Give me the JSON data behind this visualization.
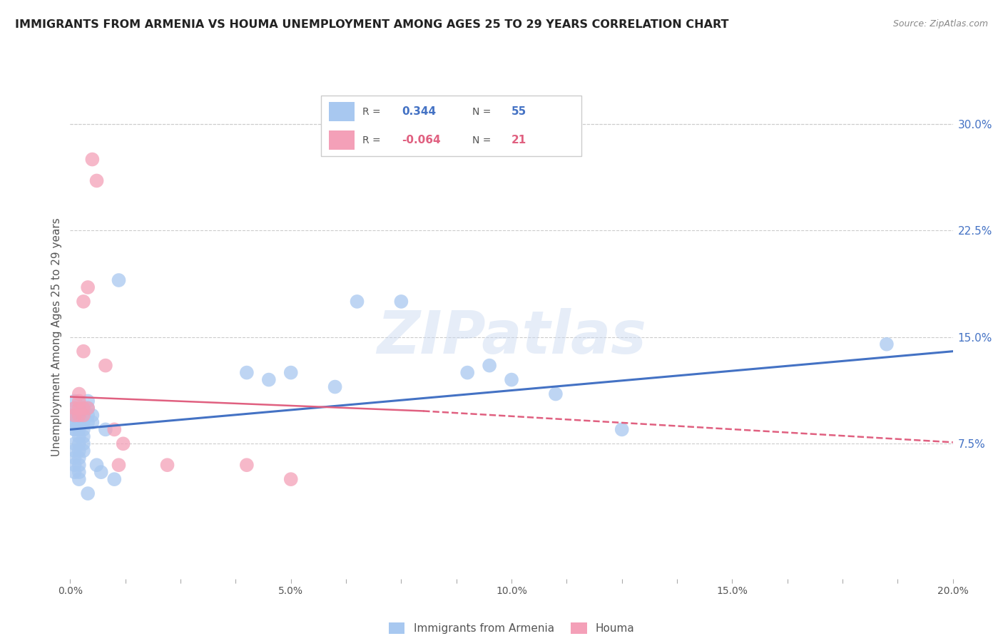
{
  "title": "IMMIGRANTS FROM ARMENIA VS HOUMA UNEMPLOYMENT AMONG AGES 25 TO 29 YEARS CORRELATION CHART",
  "source": "Source: ZipAtlas.com",
  "xlabel": "",
  "ylabel": "Unemployment Among Ages 25 to 29 years",
  "xlim": [
    0.0,
    0.2
  ],
  "ylim": [
    -0.02,
    0.32
  ],
  "ytick_vals_right": [
    0.075,
    0.15,
    0.225,
    0.3
  ],
  "ytick_labels_right": [
    "7.5%",
    "15.0%",
    "22.5%",
    "30.0%"
  ],
  "grid_color": "#cccccc",
  "background_color": "#ffffff",
  "watermark": "ZIPatlas",
  "blue_color": "#a8c8f0",
  "pink_color": "#f4a0b8",
  "blue_line_color": "#4472c4",
  "pink_line_color": "#e06080",
  "scatter_blue": [
    [
      0.0,
      0.095
    ],
    [
      0.001,
      0.085
    ],
    [
      0.001,
      0.09
    ],
    [
      0.001,
      0.095
    ],
    [
      0.001,
      0.1
    ],
    [
      0.001,
      0.105
    ],
    [
      0.001,
      0.09
    ],
    [
      0.001,
      0.095
    ],
    [
      0.001,
      0.085
    ],
    [
      0.001,
      0.075
    ],
    [
      0.001,
      0.07
    ],
    [
      0.001,
      0.065
    ],
    [
      0.001,
      0.06
    ],
    [
      0.001,
      0.055
    ],
    [
      0.002,
      0.095
    ],
    [
      0.002,
      0.09
    ],
    [
      0.002,
      0.085
    ],
    [
      0.002,
      0.08
    ],
    [
      0.002,
      0.075
    ],
    [
      0.002,
      0.07
    ],
    [
      0.002,
      0.065
    ],
    [
      0.002,
      0.06
    ],
    [
      0.002,
      0.055
    ],
    [
      0.002,
      0.05
    ],
    [
      0.003,
      0.1
    ],
    [
      0.003,
      0.095
    ],
    [
      0.003,
      0.09
    ],
    [
      0.003,
      0.085
    ],
    [
      0.003,
      0.08
    ],
    [
      0.003,
      0.075
    ],
    [
      0.003,
      0.07
    ],
    [
      0.004,
      0.105
    ],
    [
      0.004,
      0.1
    ],
    [
      0.004,
      0.095
    ],
    [
      0.004,
      0.09
    ],
    [
      0.004,
      0.04
    ],
    [
      0.005,
      0.095
    ],
    [
      0.005,
      0.09
    ],
    [
      0.006,
      0.06
    ],
    [
      0.007,
      0.055
    ],
    [
      0.008,
      0.085
    ],
    [
      0.01,
      0.05
    ],
    [
      0.011,
      0.19
    ],
    [
      0.065,
      0.175
    ],
    [
      0.075,
      0.175
    ],
    [
      0.095,
      0.13
    ],
    [
      0.1,
      0.12
    ],
    [
      0.125,
      0.085
    ],
    [
      0.185,
      0.145
    ],
    [
      0.04,
      0.125
    ],
    [
      0.045,
      0.12
    ],
    [
      0.05,
      0.125
    ],
    [
      0.06,
      0.115
    ],
    [
      0.09,
      0.125
    ],
    [
      0.11,
      0.11
    ]
  ],
  "scatter_pink": [
    [
      0.001,
      0.095
    ],
    [
      0.001,
      0.1
    ],
    [
      0.002,
      0.095
    ],
    [
      0.002,
      0.1
    ],
    [
      0.002,
      0.105
    ],
    [
      0.002,
      0.11
    ],
    [
      0.003,
      0.095
    ],
    [
      0.003,
      0.1
    ],
    [
      0.003,
      0.14
    ],
    [
      0.004,
      0.1
    ],
    [
      0.005,
      0.275
    ],
    [
      0.006,
      0.26
    ],
    [
      0.003,
      0.175
    ],
    [
      0.004,
      0.185
    ],
    [
      0.008,
      0.13
    ],
    [
      0.01,
      0.085
    ],
    [
      0.011,
      0.06
    ],
    [
      0.012,
      0.075
    ],
    [
      0.022,
      0.06
    ],
    [
      0.04,
      0.06
    ],
    [
      0.05,
      0.05
    ]
  ],
  "blue_line": [
    [
      0.0,
      0.085
    ],
    [
      0.2,
      0.14
    ]
  ],
  "pink_line_solid": [
    [
      0.0,
      0.108
    ],
    [
      0.08,
      0.098
    ]
  ],
  "pink_line_dashed": [
    [
      0.08,
      0.098
    ],
    [
      0.2,
      0.076
    ]
  ]
}
